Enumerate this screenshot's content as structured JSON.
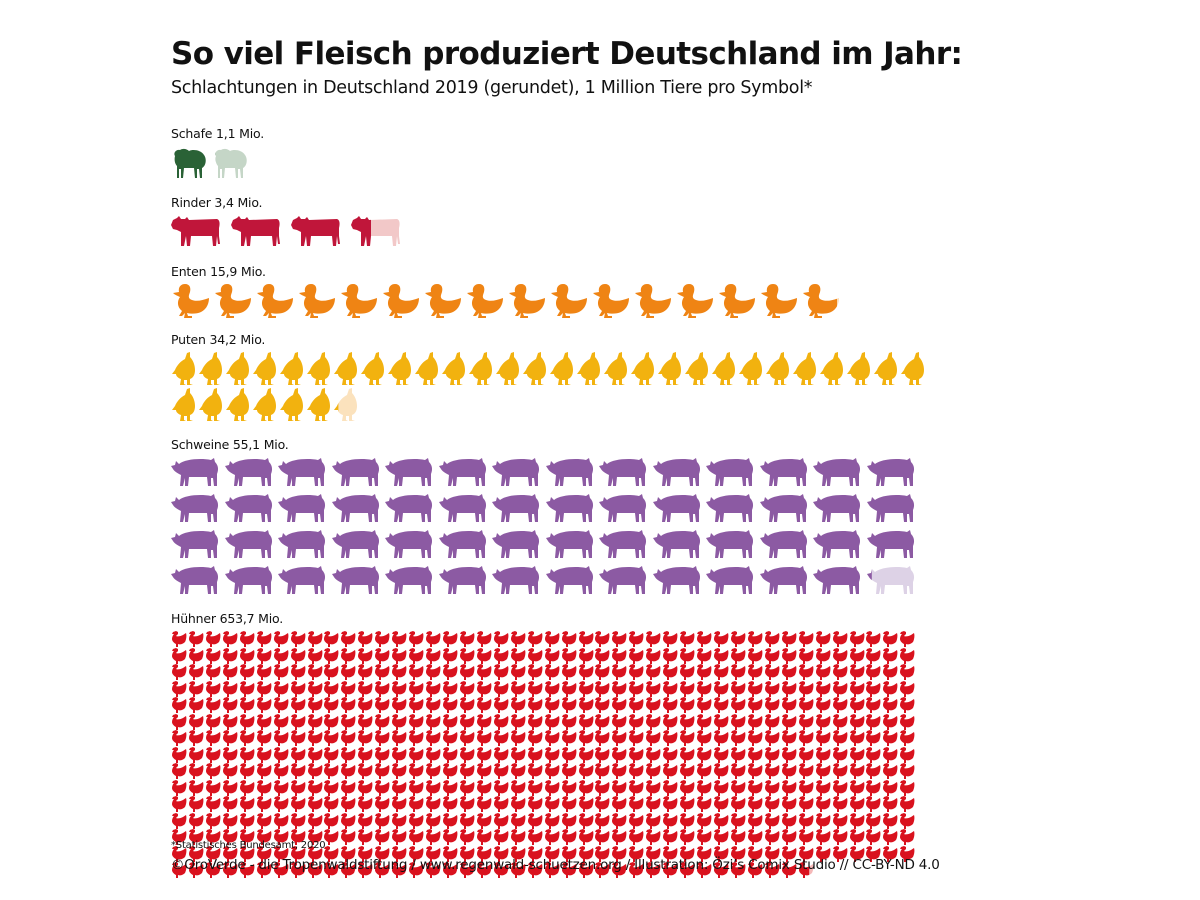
{
  "header": {
    "title": "So viel Fleisch produziert Deutschland im Jahr:",
    "subtitle": "Schlachtungen in Deutschland 2019 (gerundet), 1 Million Tiere pro Symbol*"
  },
  "footer": {
    "footnote": "*Statistisches Bundesamt, 2020",
    "credit": "©OroVerde - die Tropenwaldstiftung / www.regenwald-schuetzen.org / Illustration: Özi’s Comix Studio // CC-BY-ND 4.0"
  },
  "chart_data": {
    "type": "pictogram",
    "title": "So viel Fleisch produziert Deutschland im Jahr:",
    "subtitle": "Schlachtungen in Deutschland 2019 (gerundet), 1 Million Tiere pro Symbol*",
    "unit": "Mio. Tiere",
    "symbol_value": 1,
    "categories": [
      "Schafe",
      "Rinder",
      "Enten",
      "Puten",
      "Schweine",
      "Hühner"
    ],
    "values": [
      1.1,
      3.4,
      15.9,
      34.2,
      55.1,
      653.7
    ],
    "labels": [
      "Schafe 1,1 Mio.",
      "Rinder 3,4 Mio.",
      "Enten 15,9 Mio.",
      "Puten 34,2 Mio.",
      "Schweine 55,1 Mio.",
      "Hühner 653,7 Mio."
    ],
    "icons": [
      "sheep-icon",
      "cow-icon",
      "duck-icon",
      "turkey-icon",
      "pig-icon",
      "chicken-icon"
    ],
    "colors": [
      "#2a6236",
      "#c0163a",
      "#ef8414",
      "#f2b20f",
      "#8c5aa3",
      "#d9121e"
    ],
    "faded_colors": [
      "#c5d6c7",
      "#f2c8c8",
      "#fbdcb8",
      "#fbe2bd",
      "#ddd2e6",
      "#f5b8b8"
    ],
    "source": "*Statistisches Bundesamt, 2020"
  }
}
